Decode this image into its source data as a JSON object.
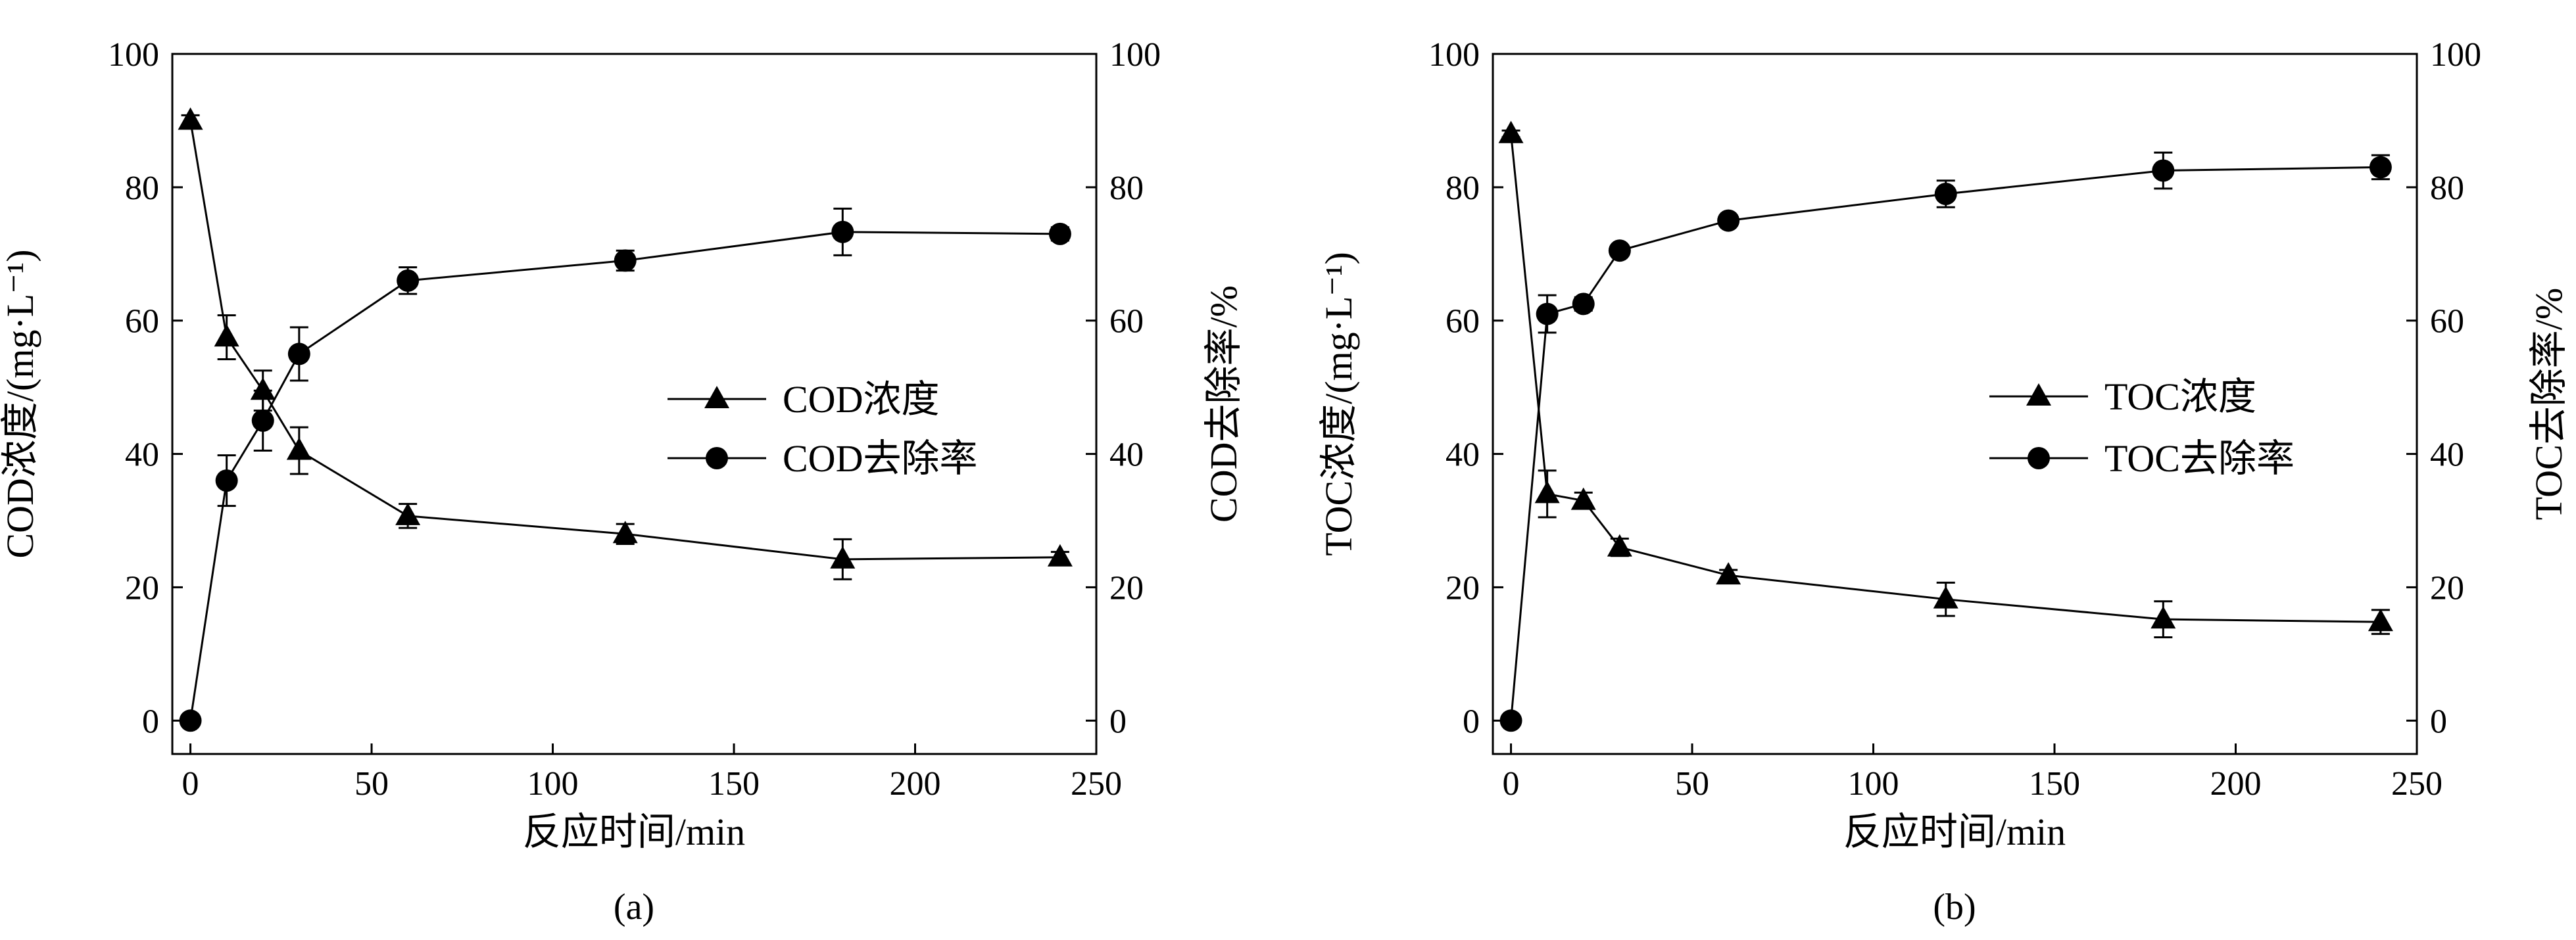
{
  "chart_data": [
    {
      "type": "line",
      "panel_label": "(a)",
      "xlabel": "反应时间/min",
      "ylabel_left": "COD浓度/(mg·L⁻¹)",
      "ylabel_right": "COD去除率/%",
      "xlim": [
        -5,
        250
      ],
      "ylim_left": [
        -5,
        100
      ],
      "ylim_right": [
        -5,
        100
      ],
      "xticks": [
        0,
        50,
        100,
        150,
        200,
        250
      ],
      "yticks_left": [
        0,
        20,
        40,
        60,
        80,
        100
      ],
      "yticks_right": [
        0,
        20,
        40,
        60,
        80,
        100
      ],
      "legend_position": "center-right",
      "series": [
        {
          "name": "COD浓度",
          "axis": "left",
          "marker": "triangle",
          "x": [
            0,
            10,
            20,
            30,
            60,
            120,
            180,
            240
          ],
          "y": [
            90,
            57.5,
            49.5,
            40.5,
            30.7,
            28,
            24.2,
            24.5
          ],
          "err": [
            0.8,
            3.3,
            3,
            3.5,
            1.8,
            1.5,
            3,
            0.8
          ]
        },
        {
          "name": "COD去除率",
          "axis": "right",
          "marker": "circle",
          "x": [
            0,
            10,
            20,
            30,
            60,
            120,
            180,
            240
          ],
          "y": [
            0,
            36,
            45,
            55,
            66,
            69,
            73.3,
            73
          ],
          "err": [
            0,
            3.8,
            4.5,
            4,
            2,
            1.5,
            3.5,
            1
          ]
        }
      ]
    },
    {
      "type": "line",
      "panel_label": "(b)",
      "xlabel": "反应时间/min",
      "ylabel_left": "TOC浓度/(mg·L⁻¹)",
      "ylabel_right": "TOC去除率/%",
      "xlim": [
        -5,
        250
      ],
      "ylim_left": [
        -5,
        100
      ],
      "ylim_right": [
        -5,
        100
      ],
      "xticks": [
        0,
        50,
        100,
        150,
        200,
        250
      ],
      "yticks_left": [
        0,
        20,
        40,
        60,
        80,
        100
      ],
      "yticks_right": [
        0,
        20,
        40,
        60,
        80,
        100
      ],
      "legend_position": "center-right",
      "series": [
        {
          "name": "TOC浓度",
          "axis": "left",
          "marker": "triangle",
          "x": [
            0,
            10,
            20,
            30,
            60,
            120,
            180,
            240
          ],
          "y": [
            88,
            34,
            33,
            26,
            21.8,
            18.2,
            15.2,
            14.8
          ],
          "err": [
            0.5,
            3.5,
            1.2,
            1.3,
            0.8,
            2.5,
            2.7,
            1.8
          ]
        },
        {
          "name": "TOC去除率",
          "axis": "right",
          "marker": "circle",
          "x": [
            0,
            10,
            20,
            30,
            60,
            120,
            180,
            240
          ],
          "y": [
            0,
            61,
            62.5,
            70.5,
            75,
            79,
            82.5,
            83
          ],
          "err": [
            0,
            2.8,
            1,
            0.8,
            0.8,
            2,
            2.7,
            1.8
          ]
        }
      ]
    }
  ]
}
